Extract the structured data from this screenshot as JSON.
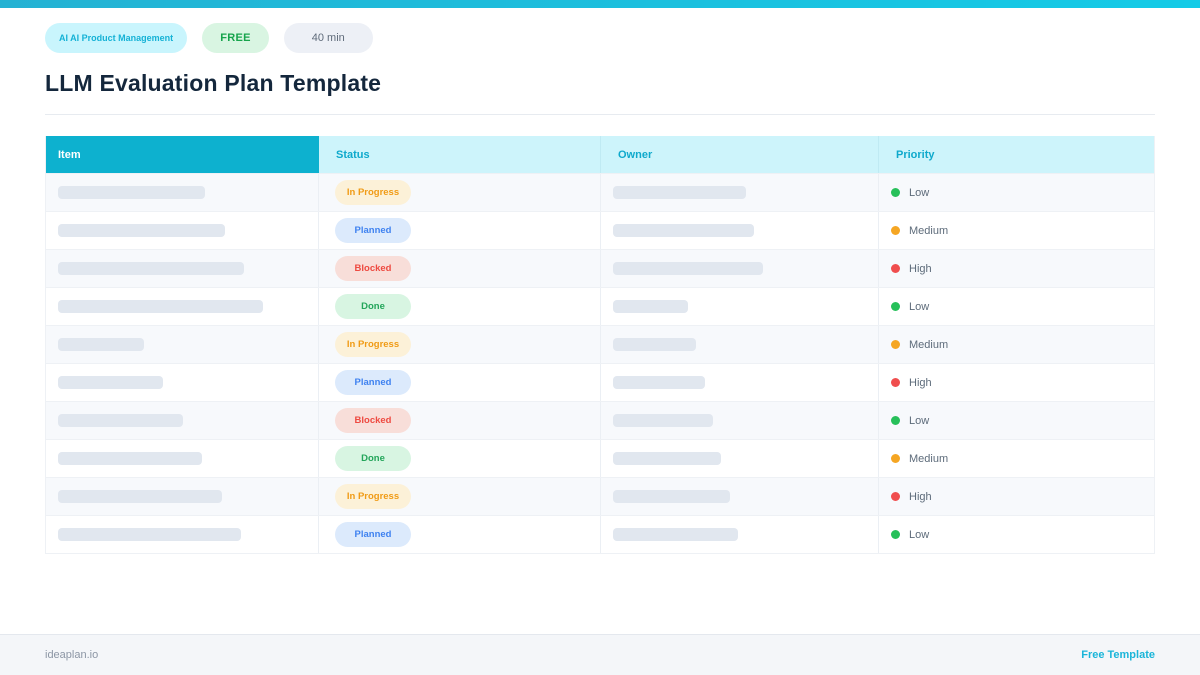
{
  "badges": {
    "category": "AI  AI Product Management",
    "free": "FREE",
    "duration": "40 min"
  },
  "page": {
    "title": "LLM Evaluation Plan Template"
  },
  "table": {
    "columns": {
      "item": "Item",
      "status": "Status",
      "owner": "Owner",
      "priority": "Priority"
    },
    "rows": [
      {
        "item_bar_width": 147,
        "status": "In Progress",
        "owner_bar_width": 133,
        "priority": "Low"
      },
      {
        "item_bar_width": 167,
        "status": "Planned",
        "owner_bar_width": 141,
        "priority": "Medium"
      },
      {
        "item_bar_width": 186,
        "status": "Blocked",
        "owner_bar_width": 150,
        "priority": "High"
      },
      {
        "item_bar_width": 205,
        "status": "Done",
        "owner_bar_width": 75,
        "priority": "Low"
      },
      {
        "item_bar_width": 86,
        "status": "In Progress",
        "owner_bar_width": 83,
        "priority": "Medium"
      },
      {
        "item_bar_width": 105,
        "status": "Planned",
        "owner_bar_width": 92,
        "priority": "High"
      },
      {
        "item_bar_width": 125,
        "status": "Blocked",
        "owner_bar_width": 100,
        "priority": "Low"
      },
      {
        "item_bar_width": 144,
        "status": "Done",
        "owner_bar_width": 108,
        "priority": "Medium"
      },
      {
        "item_bar_width": 164,
        "status": "In Progress",
        "owner_bar_width": 117,
        "priority": "High"
      },
      {
        "item_bar_width": 183,
        "status": "Planned",
        "owner_bar_width": 125,
        "priority": "Low"
      }
    ]
  },
  "footer": {
    "brand": "ideaplan.io",
    "link": "Free Template"
  },
  "colors": {
    "accent_cyan": "#0db1cf",
    "header_light_cyan": "#cdf4fb",
    "status_in_progress": "#f09b16",
    "status_planned": "#3f82f0",
    "status_blocked": "#ee4a41",
    "status_done": "#23a55a",
    "priority_low": "#27c05a",
    "priority_medium": "#f5a623",
    "priority_high": "#f04e4e"
  }
}
